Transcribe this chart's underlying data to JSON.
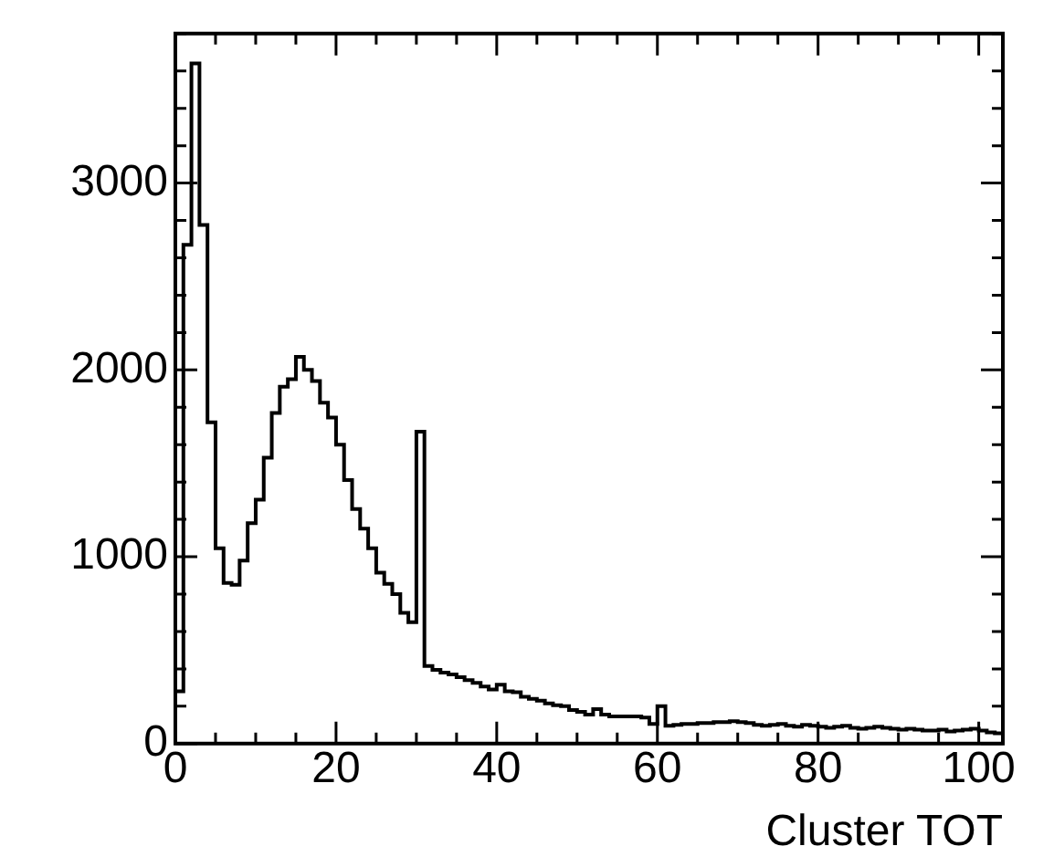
{
  "chart_data": {
    "type": "histogram",
    "xlabel": "Cluster TOT",
    "bins": [
      0,
      1,
      2,
      3,
      4,
      5,
      6,
      7,
      8,
      9,
      10,
      11,
      12,
      13,
      14,
      15,
      16,
      17,
      18,
      19,
      20,
      21,
      22,
      23,
      24,
      25,
      26,
      27,
      28,
      29,
      30,
      31,
      32,
      33,
      34,
      35,
      36,
      37,
      38,
      39,
      40,
      41,
      42,
      43,
      44,
      45,
      46,
      47,
      48,
      49,
      50,
      51,
      52,
      53,
      54,
      55,
      56,
      57,
      58,
      59,
      60,
      61,
      62,
      63,
      64,
      65,
      66,
      67,
      68,
      69,
      70,
      71,
      72,
      73,
      74,
      75,
      76,
      77,
      78,
      79,
      80,
      81,
      82,
      83,
      84,
      85,
      86,
      87,
      88,
      89,
      90,
      91,
      92,
      93,
      94,
      95,
      96,
      97,
      98,
      99,
      100,
      101,
      102,
      103
    ],
    "values": [
      280,
      2670,
      3640,
      2776,
      1720,
      1045,
      860,
      850,
      980,
      1180,
      1305,
      1530,
      1770,
      1910,
      1950,
      2070,
      2000,
      1940,
      1825,
      1745,
      1600,
      1410,
      1255,
      1150,
      1045,
      915,
      855,
      800,
      700,
      650,
      1670,
      415,
      395,
      380,
      370,
      355,
      340,
      325,
      305,
      290,
      315,
      280,
      275,
      250,
      240,
      230,
      215,
      205,
      200,
      180,
      170,
      155,
      185,
      155,
      145,
      145,
      145,
      145,
      140,
      105,
      200,
      95,
      100,
      105,
      105,
      110,
      110,
      115,
      115,
      120,
      115,
      110,
      100,
      95,
      100,
      105,
      95,
      90,
      100,
      95,
      90,
      85,
      90,
      95,
      85,
      80,
      85,
      90,
      85,
      80,
      75,
      80,
      75,
      70,
      70,
      75,
      65,
      70,
      75,
      80,
      70,
      60,
      55
    ],
    "color": "#000000",
    "xlim": [
      0,
      103
    ],
    "xticks": [
      0,
      20,
      40,
      60,
      80,
      100
    ],
    "ylim": [
      0,
      3800
    ],
    "yticks": [
      0,
      1000,
      2000,
      3000
    ],
    "legend": false
  }
}
